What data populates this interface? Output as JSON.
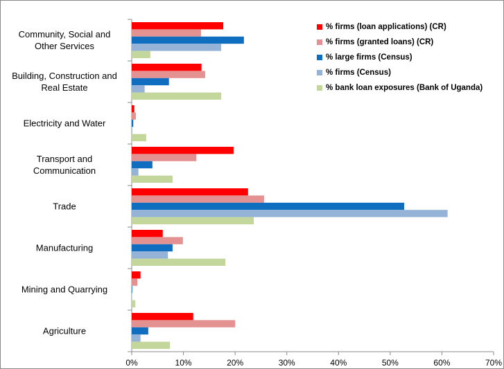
{
  "chart_data": {
    "type": "hbar",
    "categories": [
      "Community, Social and Other Services",
      "Building, Construction and Real Estate",
      "Electricity and Water",
      "Transport and Communication",
      "Trade",
      "Manufacturing",
      "Mining and Quarrying",
      "Agriculture"
    ],
    "series": [
      {
        "name": "% firms (loan applications) (CR)",
        "color": "#ff0000",
        "values": [
          17.7,
          13.5,
          0.5,
          19.7,
          22.5,
          6.0,
          1.7,
          11.9
        ]
      },
      {
        "name": "% firms (granted loans) (CR)",
        "color": "#e39191",
        "values": [
          13.4,
          14.2,
          0.8,
          12.5,
          25.6,
          9.9,
          1.1,
          20.0
        ]
      },
      {
        "name": "% large firms (Census)",
        "color": "#0f6ebf",
        "values": [
          21.7,
          7.2,
          0.3,
          4.0,
          52.7,
          7.9,
          0.1,
          3.2
        ]
      },
      {
        "name": "% firms (Census)",
        "color": "#95b3d7",
        "values": [
          17.3,
          2.5,
          0.1,
          1.3,
          61.1,
          7.0,
          0.05,
          1.7
        ]
      },
      {
        "name": "% bank loan exposures (Bank of Uganda)",
        "color": "#c3d69b",
        "values": [
          3.6,
          17.3,
          2.8,
          7.9,
          23.6,
          18.1,
          0.7,
          7.4
        ]
      }
    ],
    "xlim": [
      0,
      70
    ],
    "xticks": [
      {
        "value": 0,
        "label": "0%"
      },
      {
        "value": 10,
        "label": "10%"
      },
      {
        "value": 20,
        "label": "20%"
      },
      {
        "value": 30,
        "label": "30%"
      },
      {
        "value": 40,
        "label": "40%"
      },
      {
        "value": 50,
        "label": "50%"
      },
      {
        "value": 60,
        "label": "60%"
      },
      {
        "value": 70,
        "label": "70%"
      }
    ],
    "legend": "top-right",
    "grid": false
  }
}
